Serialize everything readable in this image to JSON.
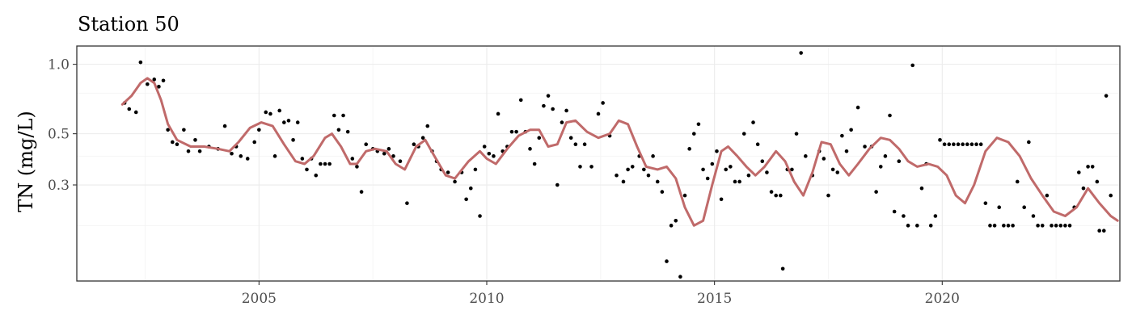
{
  "chart_data": {
    "type": "scatter",
    "title": "Station 50",
    "xlabel": "",
    "ylabel": "TN (mg/L)",
    "y_scale": "log10",
    "xlim": [
      2001,
      2023.9
    ],
    "ylim": [
      0.115,
      1.2
    ],
    "x_ticks": [
      2005,
      2010,
      2015,
      2020
    ],
    "x_tick_labels": [
      "2005",
      "2010",
      "2015",
      "2020"
    ],
    "y_ticks": [
      0.3,
      0.5,
      1.0
    ],
    "y_tick_labels": [
      "0.3",
      "0.5",
      "1.0"
    ],
    "y_minor_ticks": [
      0.2,
      0.4,
      0.75
    ],
    "grid": true,
    "smooth_color": "#c06a6a",
    "point_color": "#000000",
    "points": [
      [
        2002.05,
        0.68
      ],
      [
        2002.15,
        0.64
      ],
      [
        2002.3,
        0.62
      ],
      [
        2002.4,
        1.02
      ],
      [
        2002.55,
        0.82
      ],
      [
        2002.7,
        0.86
      ],
      [
        2002.8,
        0.8
      ],
      [
        2002.9,
        0.85
      ],
      [
        2003.0,
        0.52
      ],
      [
        2003.1,
        0.46
      ],
      [
        2003.2,
        0.45
      ],
      [
        2003.35,
        0.52
      ],
      [
        2003.45,
        0.42
      ],
      [
        2003.6,
        0.47
      ],
      [
        2003.7,
        0.42
      ],
      [
        2003.9,
        0.44
      ],
      [
        2004.1,
        0.43
      ],
      [
        2004.25,
        0.54
      ],
      [
        2004.4,
        0.41
      ],
      [
        2004.5,
        0.44
      ],
      [
        2004.6,
        0.4
      ],
      [
        2004.75,
        0.39
      ],
      [
        2004.9,
        0.46
      ],
      [
        2005.0,
        0.52
      ],
      [
        2005.15,
        0.62
      ],
      [
        2005.25,
        0.61
      ],
      [
        2005.35,
        0.4
      ],
      [
        2005.45,
        0.63
      ],
      [
        2005.55,
        0.56
      ],
      [
        2005.65,
        0.57
      ],
      [
        2005.75,
        0.47
      ],
      [
        2005.85,
        0.56
      ],
      [
        2005.95,
        0.39
      ],
      [
        2006.05,
        0.35
      ],
      [
        2006.15,
        0.39
      ],
      [
        2006.25,
        0.33
      ],
      [
        2006.35,
        0.37
      ],
      [
        2006.45,
        0.37
      ],
      [
        2006.55,
        0.37
      ],
      [
        2006.65,
        0.6
      ],
      [
        2006.75,
        0.52
      ],
      [
        2006.85,
        0.6
      ],
      [
        2006.95,
        0.51
      ],
      [
        2007.05,
        0.39
      ],
      [
        2007.15,
        0.36
      ],
      [
        2007.25,
        0.28
      ],
      [
        2007.35,
        0.45
      ],
      [
        2007.5,
        0.43
      ],
      [
        2007.6,
        0.42
      ],
      [
        2007.75,
        0.41
      ],
      [
        2007.85,
        0.43
      ],
      [
        2007.95,
        0.4
      ],
      [
        2008.1,
        0.38
      ],
      [
        2008.25,
        0.25
      ],
      [
        2008.4,
        0.45
      ],
      [
        2008.5,
        0.44
      ],
      [
        2008.6,
        0.48
      ],
      [
        2008.7,
        0.54
      ],
      [
        2008.8,
        0.42
      ],
      [
        2008.9,
        0.38
      ],
      [
        2009.0,
        0.35
      ],
      [
        2009.15,
        0.34
      ],
      [
        2009.3,
        0.31
      ],
      [
        2009.45,
        0.34
      ],
      [
        2009.55,
        0.26
      ],
      [
        2009.65,
        0.29
      ],
      [
        2009.75,
        0.35
      ],
      [
        2009.85,
        0.22
      ],
      [
        2009.95,
        0.44
      ],
      [
        2010.05,
        0.41
      ],
      [
        2010.15,
        0.4
      ],
      [
        2010.25,
        0.61
      ],
      [
        2010.35,
        0.42
      ],
      [
        2010.45,
        0.44
      ],
      [
        2010.55,
        0.51
      ],
      [
        2010.65,
        0.51
      ],
      [
        2010.75,
        0.7
      ],
      [
        2010.85,
        0.51
      ],
      [
        2010.95,
        0.43
      ],
      [
        2011.05,
        0.37
      ],
      [
        2011.15,
        0.48
      ],
      [
        2011.25,
        0.66
      ],
      [
        2011.35,
        0.73
      ],
      [
        2011.45,
        0.64
      ],
      [
        2011.55,
        0.3
      ],
      [
        2011.65,
        0.56
      ],
      [
        2011.75,
        0.63
      ],
      [
        2011.85,
        0.48
      ],
      [
        2011.95,
        0.45
      ],
      [
        2012.05,
        0.36
      ],
      [
        2012.15,
        0.45
      ],
      [
        2012.3,
        0.36
      ],
      [
        2012.45,
        0.61
      ],
      [
        2012.55,
        0.68
      ],
      [
        2012.7,
        0.49
      ],
      [
        2012.85,
        0.33
      ],
      [
        2013.0,
        0.31
      ],
      [
        2013.1,
        0.35
      ],
      [
        2013.2,
        0.36
      ],
      [
        2013.35,
        0.4
      ],
      [
        2013.45,
        0.35
      ],
      [
        2013.55,
        0.33
      ],
      [
        2013.65,
        0.4
      ],
      [
        2013.75,
        0.31
      ],
      [
        2013.85,
        0.28
      ],
      [
        2013.95,
        0.14
      ],
      [
        2014.05,
        0.2
      ],
      [
        2014.15,
        0.21
      ],
      [
        2014.25,
        0.12
      ],
      [
        2014.35,
        0.27
      ],
      [
        2014.45,
        0.43
      ],
      [
        2014.55,
        0.5
      ],
      [
        2014.65,
        0.55
      ],
      [
        2014.75,
        0.35
      ],
      [
        2014.85,
        0.32
      ],
      [
        2014.95,
        0.37
      ],
      [
        2015.05,
        0.42
      ],
      [
        2015.15,
        0.26
      ],
      [
        2015.25,
        0.35
      ],
      [
        2015.35,
        0.36
      ],
      [
        2015.45,
        0.31
      ],
      [
        2015.55,
        0.31
      ],
      [
        2015.65,
        0.5
      ],
      [
        2015.75,
        0.33
      ],
      [
        2015.85,
        0.56
      ],
      [
        2015.95,
        0.45
      ],
      [
        2016.05,
        0.38
      ],
      [
        2016.15,
        0.34
      ],
      [
        2016.25,
        0.28
      ],
      [
        2016.35,
        0.27
      ],
      [
        2016.45,
        0.27
      ],
      [
        2016.5,
        0.13
      ],
      [
        2016.6,
        0.35
      ],
      [
        2016.7,
        0.35
      ],
      [
        2016.8,
        0.5
      ],
      [
        2016.9,
        1.12
      ],
      [
        2017.0,
        0.4
      ],
      [
        2017.15,
        0.33
      ],
      [
        2017.3,
        0.42
      ],
      [
        2017.4,
        0.39
      ],
      [
        2017.5,
        0.27
      ],
      [
        2017.6,
        0.35
      ],
      [
        2017.7,
        0.34
      ],
      [
        2017.8,
        0.49
      ],
      [
        2017.9,
        0.42
      ],
      [
        2018.0,
        0.52
      ],
      [
        2018.15,
        0.65
      ],
      [
        2018.3,
        0.44
      ],
      [
        2018.45,
        0.44
      ],
      [
        2018.55,
        0.28
      ],
      [
        2018.65,
        0.36
      ],
      [
        2018.75,
        0.4
      ],
      [
        2018.85,
        0.6
      ],
      [
        2018.95,
        0.23
      ],
      [
        2019.05,
        0.38
      ],
      [
        2019.15,
        0.22
      ],
      [
        2019.25,
        0.2
      ],
      [
        2019.35,
        0.99
      ],
      [
        2019.45,
        0.2
      ],
      [
        2019.55,
        0.29
      ],
      [
        2019.65,
        0.37
      ],
      [
        2019.75,
        0.2
      ],
      [
        2019.85,
        0.22
      ],
      [
        2019.95,
        0.47
      ],
      [
        2020.05,
        0.45
      ],
      [
        2020.15,
        0.45
      ],
      [
        2020.25,
        0.45
      ],
      [
        2020.35,
        0.45
      ],
      [
        2020.45,
        0.45
      ],
      [
        2020.55,
        0.45
      ],
      [
        2020.65,
        0.45
      ],
      [
        2020.75,
        0.45
      ],
      [
        2020.85,
        0.45
      ],
      [
        2020.95,
        0.25
      ],
      [
        2021.05,
        0.2
      ],
      [
        2021.15,
        0.2
      ],
      [
        2021.25,
        0.24
      ],
      [
        2021.35,
        0.2
      ],
      [
        2021.45,
        0.2
      ],
      [
        2021.55,
        0.2
      ],
      [
        2021.65,
        0.31
      ],
      [
        2021.8,
        0.24
      ],
      [
        2021.9,
        0.46
      ],
      [
        2022.0,
        0.22
      ],
      [
        2022.1,
        0.2
      ],
      [
        2022.2,
        0.2
      ],
      [
        2022.3,
        0.27
      ],
      [
        2022.4,
        0.2
      ],
      [
        2022.5,
        0.2
      ],
      [
        2022.6,
        0.2
      ],
      [
        2022.7,
        0.2
      ],
      [
        2022.8,
        0.2
      ],
      [
        2022.9,
        0.24
      ],
      [
        2023.0,
        0.34
      ],
      [
        2023.1,
        0.29
      ],
      [
        2023.2,
        0.36
      ],
      [
        2023.3,
        0.36
      ],
      [
        2023.4,
        0.31
      ],
      [
        2023.45,
        0.19
      ],
      [
        2023.55,
        0.19
      ],
      [
        2023.6,
        0.73
      ],
      [
        2023.7,
        0.27
      ]
    ],
    "smooth_curve": [
      [
        2002.0,
        0.67
      ],
      [
        2002.2,
        0.73
      ],
      [
        2002.4,
        0.83
      ],
      [
        2002.55,
        0.87
      ],
      [
        2002.7,
        0.83
      ],
      [
        2002.85,
        0.7
      ],
      [
        2003.0,
        0.55
      ],
      [
        2003.2,
        0.47
      ],
      [
        2003.5,
        0.44
      ],
      [
        2003.8,
        0.44
      ],
      [
        2004.1,
        0.43
      ],
      [
        2004.35,
        0.42
      ],
      [
        2004.55,
        0.46
      ],
      [
        2004.8,
        0.53
      ],
      [
        2005.05,
        0.56
      ],
      [
        2005.3,
        0.54
      ],
      [
        2005.55,
        0.45
      ],
      [
        2005.8,
        0.38
      ],
      [
        2006.0,
        0.37
      ],
      [
        2006.2,
        0.4
      ],
      [
        2006.45,
        0.48
      ],
      [
        2006.6,
        0.5
      ],
      [
        2006.8,
        0.44
      ],
      [
        2007.0,
        0.37
      ],
      [
        2007.15,
        0.37
      ],
      [
        2007.35,
        0.42
      ],
      [
        2007.55,
        0.43
      ],
      [
        2007.8,
        0.42
      ],
      [
        2008.0,
        0.37
      ],
      [
        2008.2,
        0.35
      ],
      [
        2008.45,
        0.44
      ],
      [
        2008.65,
        0.47
      ],
      [
        2008.85,
        0.4
      ],
      [
        2009.1,
        0.33
      ],
      [
        2009.3,
        0.32
      ],
      [
        2009.6,
        0.38
      ],
      [
        2009.85,
        0.42
      ],
      [
        2010.0,
        0.39
      ],
      [
        2010.2,
        0.37
      ],
      [
        2010.45,
        0.43
      ],
      [
        2010.7,
        0.49
      ],
      [
        2010.95,
        0.52
      ],
      [
        2011.15,
        0.52
      ],
      [
        2011.35,
        0.44
      ],
      [
        2011.55,
        0.45
      ],
      [
        2011.75,
        0.56
      ],
      [
        2011.95,
        0.57
      ],
      [
        2012.2,
        0.51
      ],
      [
        2012.45,
        0.48
      ],
      [
        2012.7,
        0.5
      ],
      [
        2012.9,
        0.57
      ],
      [
        2013.1,
        0.55
      ],
      [
        2013.3,
        0.44
      ],
      [
        2013.5,
        0.36
      ],
      [
        2013.75,
        0.35
      ],
      [
        2013.95,
        0.36
      ],
      [
        2014.15,
        0.32
      ],
      [
        2014.35,
        0.24
      ],
      [
        2014.55,
        0.2
      ],
      [
        2014.75,
        0.21
      ],
      [
        2014.95,
        0.3
      ],
      [
        2015.15,
        0.42
      ],
      [
        2015.3,
        0.44
      ],
      [
        2015.5,
        0.4
      ],
      [
        2015.7,
        0.36
      ],
      [
        2015.9,
        0.33
      ],
      [
        2016.1,
        0.36
      ],
      [
        2016.35,
        0.42
      ],
      [
        2016.55,
        0.38
      ],
      [
        2016.75,
        0.31
      ],
      [
        2016.95,
        0.27
      ],
      [
        2017.15,
        0.34
      ],
      [
        2017.35,
        0.46
      ],
      [
        2017.55,
        0.45
      ],
      [
        2017.75,
        0.37
      ],
      [
        2017.95,
        0.33
      ],
      [
        2018.15,
        0.37
      ],
      [
        2018.4,
        0.43
      ],
      [
        2018.65,
        0.48
      ],
      [
        2018.85,
        0.47
      ],
      [
        2019.05,
        0.43
      ],
      [
        2019.25,
        0.38
      ],
      [
        2019.45,
        0.36
      ],
      [
        2019.7,
        0.37
      ],
      [
        2019.9,
        0.36
      ],
      [
        2020.1,
        0.33
      ],
      [
        2020.3,
        0.27
      ],
      [
        2020.5,
        0.25
      ],
      [
        2020.7,
        0.3
      ],
      [
        2020.95,
        0.42
      ],
      [
        2021.2,
        0.48
      ],
      [
        2021.45,
        0.46
      ],
      [
        2021.7,
        0.4
      ],
      [
        2021.95,
        0.32
      ],
      [
        2022.2,
        0.27
      ],
      [
        2022.45,
        0.23
      ],
      [
        2022.7,
        0.22
      ],
      [
        2022.95,
        0.24
      ],
      [
        2023.2,
        0.29
      ],
      [
        2023.45,
        0.25
      ],
      [
        2023.7,
        0.22
      ],
      [
        2023.85,
        0.21
      ]
    ]
  }
}
